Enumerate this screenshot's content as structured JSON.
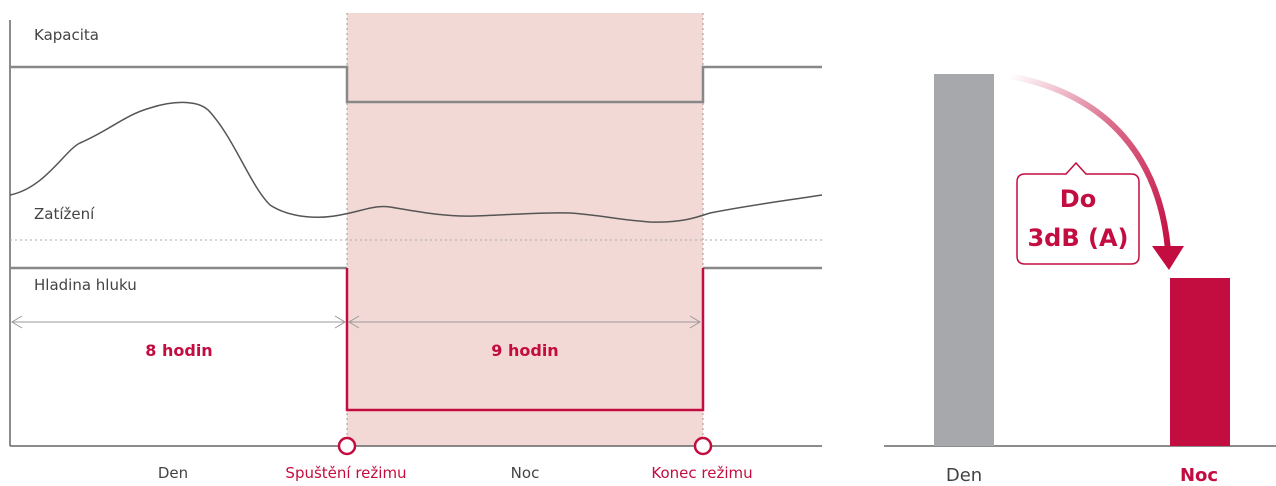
{
  "left_chart": {
    "labels": {
      "capacity": "Kapacita",
      "load": "Zatížení",
      "noise": "Hladina hluku"
    },
    "durations": {
      "day": "8 hodin",
      "night": "9 hodin"
    },
    "x_axis": {
      "day": "Den",
      "mode_start": "Spuštění režimu",
      "night": "Noc",
      "mode_end": "Konec režimu"
    }
  },
  "right_chart": {
    "callout": {
      "line1": "Do",
      "line2": "3dB (A)"
    },
    "x_axis": {
      "day": "Den",
      "night": "Noc"
    }
  },
  "colors": {
    "accent": "#c30c3f",
    "night_band": "#f3d9d6",
    "gray_line": "#888888",
    "gray_bar": "#a7a8ac",
    "text": "#444444"
  }
}
